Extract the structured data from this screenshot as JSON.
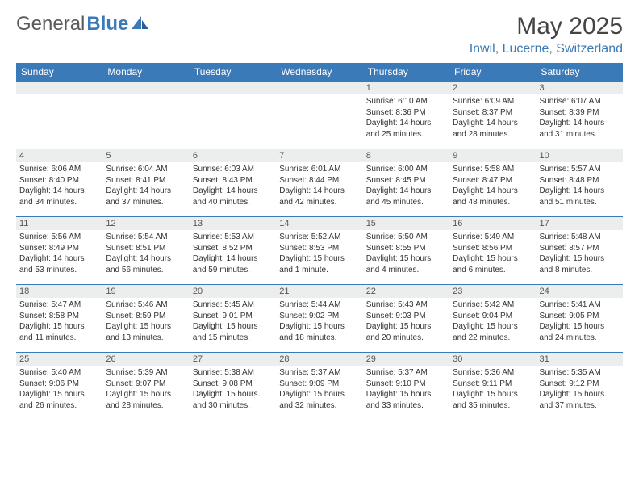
{
  "logo": {
    "part1": "General",
    "part2": "Blue"
  },
  "title": "May 2025",
  "location": "Inwil, Lucerne, Switzerland",
  "colors": {
    "brand": "#3a7ab8",
    "header_text": "#ffffff",
    "daynum_bg": "#eceded",
    "text": "#333333",
    "logo_gray": "#5a5a5a"
  },
  "day_labels": [
    "Sunday",
    "Monday",
    "Tuesday",
    "Wednesday",
    "Thursday",
    "Friday",
    "Saturday"
  ],
  "weeks": [
    [
      null,
      null,
      null,
      null,
      {
        "n": "1",
        "sr": "6:10 AM",
        "ss": "8:36 PM",
        "dl": "14 hours and 25 minutes."
      },
      {
        "n": "2",
        "sr": "6:09 AM",
        "ss": "8:37 PM",
        "dl": "14 hours and 28 minutes."
      },
      {
        "n": "3",
        "sr": "6:07 AM",
        "ss": "8:39 PM",
        "dl": "14 hours and 31 minutes."
      }
    ],
    [
      {
        "n": "4",
        "sr": "6:06 AM",
        "ss": "8:40 PM",
        "dl": "14 hours and 34 minutes."
      },
      {
        "n": "5",
        "sr": "6:04 AM",
        "ss": "8:41 PM",
        "dl": "14 hours and 37 minutes."
      },
      {
        "n": "6",
        "sr": "6:03 AM",
        "ss": "8:43 PM",
        "dl": "14 hours and 40 minutes."
      },
      {
        "n": "7",
        "sr": "6:01 AM",
        "ss": "8:44 PM",
        "dl": "14 hours and 42 minutes."
      },
      {
        "n": "8",
        "sr": "6:00 AM",
        "ss": "8:45 PM",
        "dl": "14 hours and 45 minutes."
      },
      {
        "n": "9",
        "sr": "5:58 AM",
        "ss": "8:47 PM",
        "dl": "14 hours and 48 minutes."
      },
      {
        "n": "10",
        "sr": "5:57 AM",
        "ss": "8:48 PM",
        "dl": "14 hours and 51 minutes."
      }
    ],
    [
      {
        "n": "11",
        "sr": "5:56 AM",
        "ss": "8:49 PM",
        "dl": "14 hours and 53 minutes."
      },
      {
        "n": "12",
        "sr": "5:54 AM",
        "ss": "8:51 PM",
        "dl": "14 hours and 56 minutes."
      },
      {
        "n": "13",
        "sr": "5:53 AM",
        "ss": "8:52 PM",
        "dl": "14 hours and 59 minutes."
      },
      {
        "n": "14",
        "sr": "5:52 AM",
        "ss": "8:53 PM",
        "dl": "15 hours and 1 minute."
      },
      {
        "n": "15",
        "sr": "5:50 AM",
        "ss": "8:55 PM",
        "dl": "15 hours and 4 minutes."
      },
      {
        "n": "16",
        "sr": "5:49 AM",
        "ss": "8:56 PM",
        "dl": "15 hours and 6 minutes."
      },
      {
        "n": "17",
        "sr": "5:48 AM",
        "ss": "8:57 PM",
        "dl": "15 hours and 8 minutes."
      }
    ],
    [
      {
        "n": "18",
        "sr": "5:47 AM",
        "ss": "8:58 PM",
        "dl": "15 hours and 11 minutes."
      },
      {
        "n": "19",
        "sr": "5:46 AM",
        "ss": "8:59 PM",
        "dl": "15 hours and 13 minutes."
      },
      {
        "n": "20",
        "sr": "5:45 AM",
        "ss": "9:01 PM",
        "dl": "15 hours and 15 minutes."
      },
      {
        "n": "21",
        "sr": "5:44 AM",
        "ss": "9:02 PM",
        "dl": "15 hours and 18 minutes."
      },
      {
        "n": "22",
        "sr": "5:43 AM",
        "ss": "9:03 PM",
        "dl": "15 hours and 20 minutes."
      },
      {
        "n": "23",
        "sr": "5:42 AM",
        "ss": "9:04 PM",
        "dl": "15 hours and 22 minutes."
      },
      {
        "n": "24",
        "sr": "5:41 AM",
        "ss": "9:05 PM",
        "dl": "15 hours and 24 minutes."
      }
    ],
    [
      {
        "n": "25",
        "sr": "5:40 AM",
        "ss": "9:06 PM",
        "dl": "15 hours and 26 minutes."
      },
      {
        "n": "26",
        "sr": "5:39 AM",
        "ss": "9:07 PM",
        "dl": "15 hours and 28 minutes."
      },
      {
        "n": "27",
        "sr": "5:38 AM",
        "ss": "9:08 PM",
        "dl": "15 hours and 30 minutes."
      },
      {
        "n": "28",
        "sr": "5:37 AM",
        "ss": "9:09 PM",
        "dl": "15 hours and 32 minutes."
      },
      {
        "n": "29",
        "sr": "5:37 AM",
        "ss": "9:10 PM",
        "dl": "15 hours and 33 minutes."
      },
      {
        "n": "30",
        "sr": "5:36 AM",
        "ss": "9:11 PM",
        "dl": "15 hours and 35 minutes."
      },
      {
        "n": "31",
        "sr": "5:35 AM",
        "ss": "9:12 PM",
        "dl": "15 hours and 37 minutes."
      }
    ]
  ],
  "labels": {
    "sunrise": "Sunrise: ",
    "sunset": "Sunset: ",
    "daylight": "Daylight: "
  }
}
